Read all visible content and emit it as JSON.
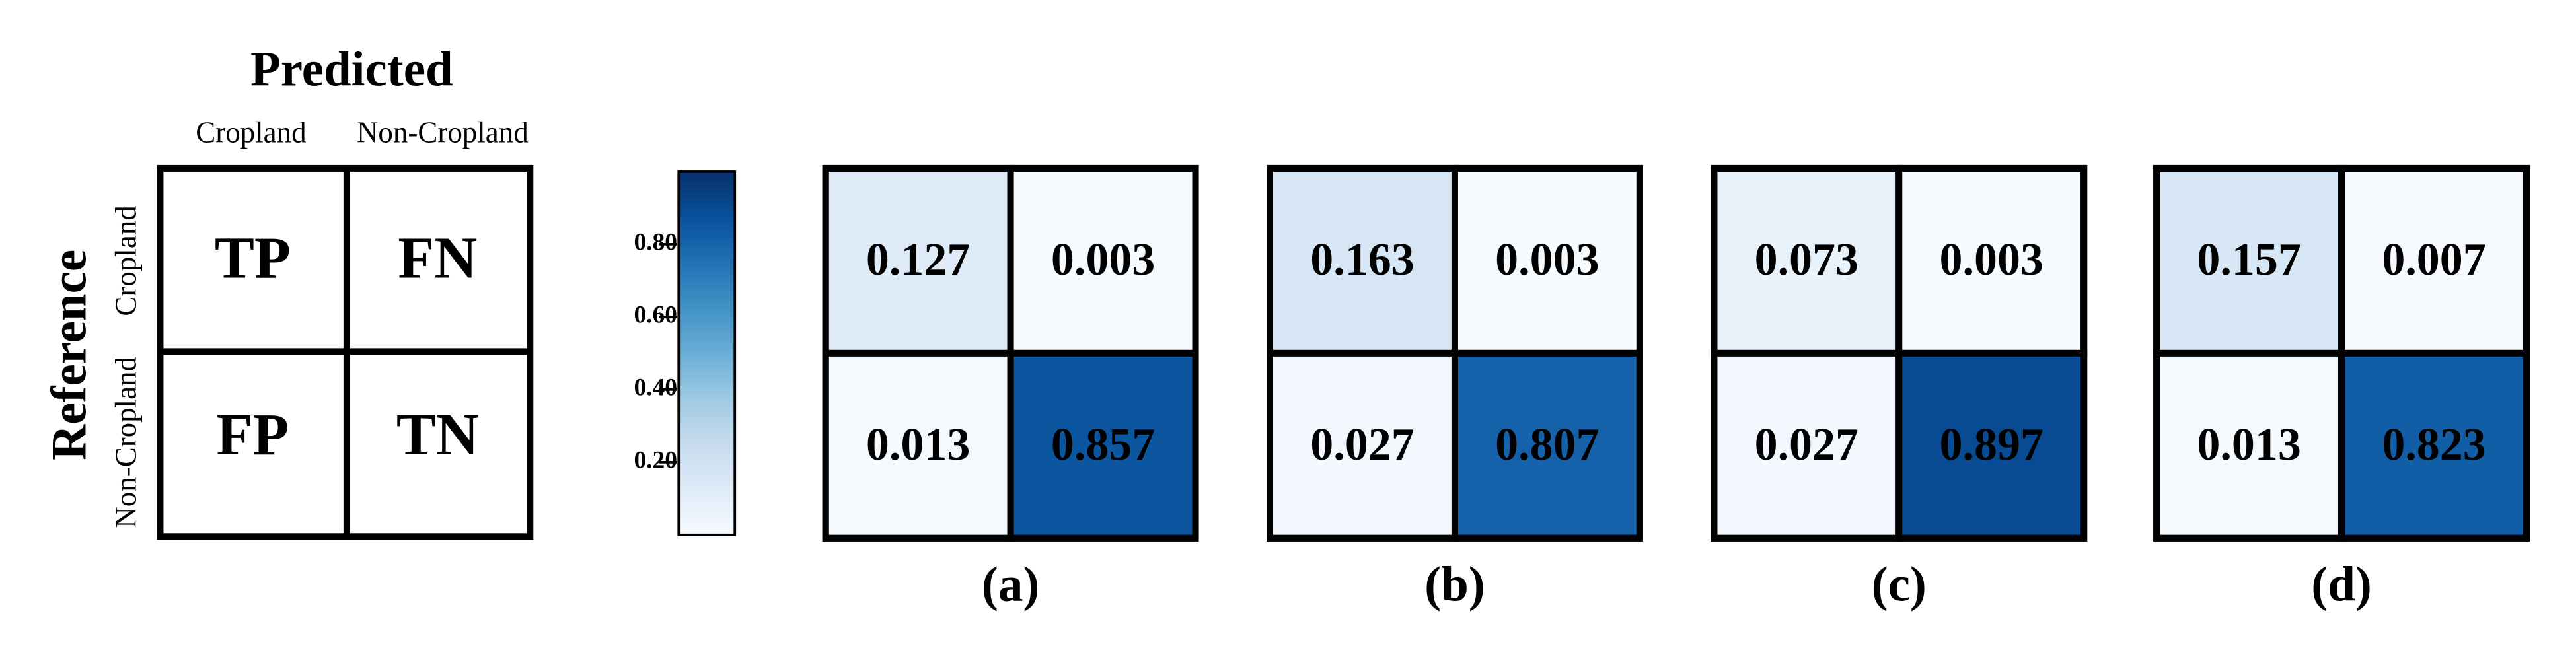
{
  "key": {
    "title": "Predicted",
    "columns": [
      "Cropland",
      "Non-Cropland"
    ],
    "row_title": "Reference",
    "rows": [
      "Cropland",
      "Non-Cropland"
    ],
    "cells": [
      [
        "TP",
        "FN"
      ],
      [
        "FP",
        "TN"
      ]
    ]
  },
  "colorbar": {
    "colormap": "Blues",
    "clim": [
      0,
      1
    ],
    "ticks": [
      {
        "value": 0.2,
        "label": "0.20"
      },
      {
        "value": 0.4,
        "label": "0.40"
      },
      {
        "value": 0.6,
        "label": "0.60"
      },
      {
        "value": 0.8,
        "label": "0.80"
      }
    ]
  },
  "chart_data": [
    {
      "type": "heatmap",
      "label": "(a)",
      "values": [
        [
          0.127,
          0.003
        ],
        [
          0.013,
          0.857
        ]
      ]
    },
    {
      "type": "heatmap",
      "label": "(b)",
      "values": [
        [
          0.163,
          0.003
        ],
        [
          0.027,
          0.807
        ]
      ]
    },
    {
      "type": "heatmap",
      "label": "(c)",
      "values": [
        [
          0.073,
          0.003
        ],
        [
          0.027,
          0.897
        ]
      ]
    },
    {
      "type": "heatmap",
      "label": "(d)",
      "values": [
        [
          0.157,
          0.007
        ],
        [
          0.013,
          0.823
        ]
      ]
    }
  ]
}
